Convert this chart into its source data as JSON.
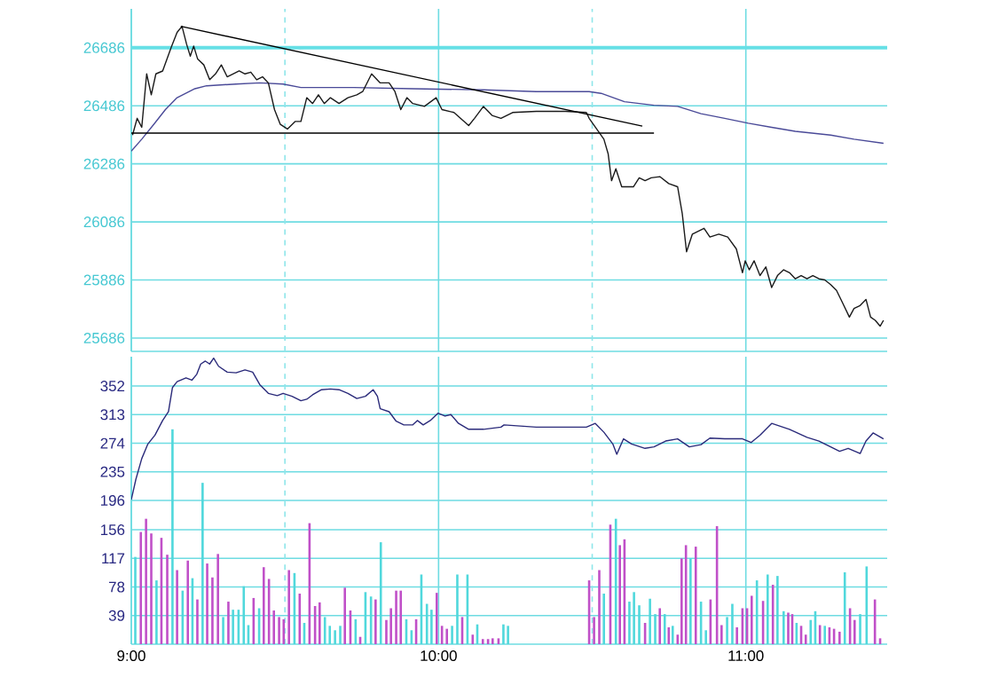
{
  "chart_data": [
    {
      "type": "line",
      "xlim": [
        9,
        11.46
      ],
      "xticks": [
        {
          "value": 9,
          "label": null
        },
        {
          "value": 10,
          "label": null
        },
        {
          "value": 11,
          "label": null
        }
      ],
      "ylim": [
        25640,
        26820
      ],
      "yticks": [
        25686,
        25886,
        26086,
        26286,
        26486,
        26686
      ],
      "grid": true,
      "tick_labels": "y",
      "ref_lines": [
        {
          "axis": "y",
          "value": 26686,
          "color": "#66e0e6"
        },
        {
          "axis": "x",
          "value": 9.5,
          "color": "#8ee6ea",
          "line_style": "dashed"
        },
        {
          "axis": "x",
          "value": 10.5,
          "color": "#8ee6ea",
          "line_style": "dashed"
        }
      ],
      "series": [
        {
          "color": "#4a4a98",
          "x": [
            9.0,
            9.034,
            9.073,
            9.111,
            9.149,
            9.207,
            9.245,
            9.341,
            9.418,
            9.494,
            9.552,
            9.724,
            9.916,
            10.146,
            10.318,
            10.49,
            10.529,
            10.605,
            10.701,
            10.778,
            10.854,
            10.931,
            11.008,
            11.084,
            11.161,
            11.276,
            11.352,
            11.448
          ],
          "values": [
            26330,
            26371,
            26422,
            26473,
            26514,
            26545,
            26555,
            26561,
            26565,
            26561,
            26549,
            26549,
            26545,
            26541,
            26535,
            26535,
            26529,
            26500,
            26488,
            26484,
            26459,
            26443,
            26426,
            26412,
            26398,
            26385,
            26371,
            26357
          ]
        },
        {
          "color": "#1a1a1a",
          "x": [
            9.004,
            9.019,
            9.034,
            9.05,
            9.065,
            9.08,
            9.102,
            9.13,
            9.149,
            9.165,
            9.18,
            9.192,
            9.203,
            9.216,
            9.236,
            9.255,
            9.274,
            9.293,
            9.312,
            9.331,
            9.351,
            9.37,
            9.389,
            9.408,
            9.427,
            9.446,
            9.466,
            9.485,
            9.508,
            9.533,
            9.552,
            9.571,
            9.59,
            9.609,
            9.628,
            9.648,
            9.676,
            9.705,
            9.734,
            9.753,
            9.782,
            9.81,
            9.839,
            9.858,
            9.877,
            9.897,
            9.916,
            9.954,
            9.992,
            10.011,
            10.05,
            10.098,
            10.117,
            10.146,
            10.174,
            10.203,
            10.241,
            10.318,
            10.414,
            10.481,
            10.49,
            10.538,
            10.552,
            10.563,
            10.577,
            10.596,
            10.634,
            10.653,
            10.672,
            10.692,
            10.72,
            10.749,
            10.778,
            10.793,
            10.807,
            10.826,
            10.845,
            10.864,
            10.883,
            10.912,
            10.941,
            10.969,
            10.989,
            10.998,
            11.011,
            11.027,
            11.046,
            11.065,
            11.084,
            11.103,
            11.123,
            11.142,
            11.161,
            11.18,
            11.199,
            11.218,
            11.238,
            11.257,
            11.276,
            11.295,
            11.314,
            11.337,
            11.352,
            11.372,
            11.391,
            11.406,
            11.421,
            11.437,
            11.448
          ],
          "values": [
            26385,
            26443,
            26412,
            26596,
            26524,
            26596,
            26606,
            26688,
            26739,
            26760,
            26698,
            26657,
            26692,
            26647,
            26627,
            26576,
            26596,
            26627,
            26586,
            26596,
            26606,
            26596,
            26602,
            26576,
            26586,
            26565,
            26473,
            26422,
            26406,
            26432,
            26432,
            26514,
            26494,
            26524,
            26494,
            26514,
            26494,
            26514,
            26524,
            26535,
            26596,
            26565,
            26565,
            26535,
            26473,
            26514,
            26494,
            26484,
            26514,
            26473,
            26463,
            26418,
            26443,
            26484,
            26453,
            26443,
            26463,
            26467,
            26467,
            26463,
            26443,
            26371,
            26320,
            26228,
            26269,
            26207,
            26207,
            26238,
            26228,
            26238,
            26242,
            26218,
            26207,
            26115,
            25983,
            26044,
            26054,
            26064,
            26034,
            26044,
            26034,
            25993,
            25911,
            25952,
            25921,
            25952,
            25901,
            25931,
            25860,
            25901,
            25921,
            25911,
            25890,
            25901,
            25890,
            25901,
            25890,
            25886,
            25870,
            25850,
            25809,
            25758,
            25788,
            25798,
            25819,
            25758,
            25747,
            25727,
            25747
          ]
        },
        {
          "color": "#000000",
          "x": [
            9.161,
            10.663
          ],
          "values": [
            26760,
            26416
          ]
        },
        {
          "color": "#000000",
          "x": [
            9.0,
            10.701
          ],
          "values": [
            26392,
            26392
          ]
        }
      ]
    },
    {
      "type": "bar",
      "xlim": [
        9,
        11.46
      ],
      "xticks": [
        {
          "value": 9,
          "label": "9:00"
        },
        {
          "value": 10,
          "label": "10:00"
        },
        {
          "value": 11,
          "label": "11:00"
        }
      ],
      "ylim": [
        0,
        392
      ],
      "yticks": [
        39,
        78,
        117,
        156,
        196,
        235,
        274,
        313,
        352
      ],
      "grid": true,
      "ref_lines": [
        {
          "axis": "x",
          "value": 9.5,
          "color": "#8ee6ea",
          "line_style": "dashed"
        },
        {
          "axis": "x",
          "value": 10.5,
          "color": "#8ee6ea",
          "line_style": "dashed"
        }
      ],
      "series": [
        {
          "type": "bar",
          "color": "#c050c8",
          "x": [
            9.031,
            9.048,
            9.065,
            9.098,
            9.117,
            9.149,
            9.184,
            9.215,
            9.247,
            9.264,
            9.282,
            9.316,
            9.398,
            9.431,
            9.448,
            9.464,
            9.481,
            9.496,
            9.513,
            9.548,
            9.58,
            9.598,
            9.613,
            9.695,
            9.713,
            9.745,
            9.795,
            9.83,
            9.845,
            9.862,
            9.877,
            9.927,
            9.994,
            10.011,
            10.027,
            10.077,
            10.111,
            10.144,
            10.161,
            10.176,
            10.195,
            10.49,
            10.506,
            10.523,
            10.559,
            10.59,
            10.605,
            10.672,
            10.72,
            10.749,
            10.778,
            10.791,
            10.805,
            10.837,
            10.885,
            10.906,
            10.921,
            10.971,
            10.989,
            11.004,
            11.019,
            11.056,
            11.088,
            11.138,
            11.151,
            11.18,
            11.195,
            11.241,
            11.272,
            11.287,
            11.305,
            11.339,
            11.354,
            11.42,
            11.437
          ],
          "values": [
            153,
            171,
            151,
            145,
            122,
            101,
            114,
            61,
            110,
            91,
            123,
            58,
            63,
            105,
            89,
            46,
            37,
            34,
            101,
            69,
            165,
            52,
            57,
            77,
            46,
            10,
            61,
            33,
            49,
            73,
            73,
            34,
            70,
            25,
            21,
            37,
            13,
            7,
            7,
            8,
            8,
            87,
            37,
            101,
            163,
            135,
            143,
            29,
            49,
            23,
            13,
            117,
            135,
            133,
            61,
            161,
            26,
            23,
            49,
            49,
            66,
            59,
            81,
            43,
            41,
            25,
            13,
            26,
            23,
            21,
            17,
            49,
            33,
            61,
            8
          ]
        },
        {
          "type": "bar",
          "color": "#50d8dc",
          "x": [
            9.013,
            9.082,
            9.134,
            9.167,
            9.199,
            9.232,
            9.299,
            9.331,
            9.349,
            9.366,
            9.381,
            9.416,
            9.531,
            9.563,
            9.63,
            9.646,
            9.663,
            9.68,
            9.73,
            9.762,
            9.78,
            9.812,
            9.895,
            9.912,
            9.944,
            9.962,
            9.977,
            10.044,
            10.061,
            10.094,
            10.126,
            10.211,
            10.226,
            10.538,
            10.577,
            10.621,
            10.636,
            10.653,
            10.688,
            10.705,
            10.736,
            10.762,
            10.82,
            10.854,
            10.87,
            10.939,
            10.956,
            11.036,
            11.071,
            11.103,
            11.123,
            11.165,
            11.211,
            11.226,
            11.257,
            11.322,
            11.372,
            11.393
          ],
          "values": [
            119,
            87,
            293,
            73,
            90,
            220,
            37,
            47,
            47,
            79,
            26,
            49,
            97,
            29,
            37,
            25,
            19,
            25,
            34,
            71,
            65,
            139,
            34,
            19,
            95,
            55,
            47,
            25,
            95,
            95,
            27,
            27,
            25,
            69,
            171,
            58,
            71,
            53,
            62,
            41,
            41,
            25,
            117,
            58,
            19,
            37,
            55,
            87,
            95,
            93,
            45,
            29,
            33,
            45,
            25,
            98,
            41,
            106
          ]
        },
        {
          "type": "line",
          "color": "#2a2a7a",
          "x": [
            9.0,
            9.015,
            9.034,
            9.054,
            9.077,
            9.102,
            9.121,
            9.134,
            9.149,
            9.178,
            9.197,
            9.213,
            9.226,
            9.241,
            9.255,
            9.268,
            9.284,
            9.312,
            9.341,
            9.37,
            9.395,
            9.418,
            9.446,
            9.475,
            9.494,
            9.523,
            9.552,
            9.571,
            9.59,
            9.619,
            9.648,
            9.676,
            9.705,
            9.734,
            9.762,
            9.787,
            9.801,
            9.81,
            9.839,
            9.862,
            9.887,
            9.916,
            9.931,
            9.95,
            9.973,
            9.998,
            10.021,
            10.04,
            10.065,
            10.098,
            10.126,
            10.146,
            10.203,
            10.213,
            10.318,
            10.481,
            10.51,
            10.538,
            10.567,
            10.58,
            10.602,
            10.628,
            10.672,
            10.701,
            10.739,
            10.778,
            10.816,
            10.854,
            10.883,
            10.931,
            10.989,
            11.017,
            11.046,
            11.084,
            11.142,
            11.199,
            11.238,
            11.276,
            11.305,
            11.333,
            11.372,
            11.391,
            11.414,
            11.448
          ],
          "values": [
            197,
            225,
            253,
            273,
            285,
            305,
            317,
            350,
            358,
            363,
            360,
            368,
            382,
            386,
            382,
            390,
            379,
            371,
            370,
            374,
            371,
            354,
            342,
            339,
            342,
            338,
            332,
            334,
            340,
            347,
            348,
            347,
            342,
            335,
            338,
            347,
            338,
            321,
            317,
            304,
            299,
            299,
            305,
            299,
            305,
            315,
            311,
            313,
            301,
            293,
            293,
            293,
            296,
            299,
            296,
            296,
            301,
            289,
            273,
            259,
            280,
            273,
            267,
            269,
            277,
            280,
            269,
            272,
            281,
            280,
            280,
            275,
            285,
            301,
            293,
            282,
            277,
            269,
            263,
            267,
            260,
            277,
            288,
            280
          ]
        }
      ]
    }
  ]
}
